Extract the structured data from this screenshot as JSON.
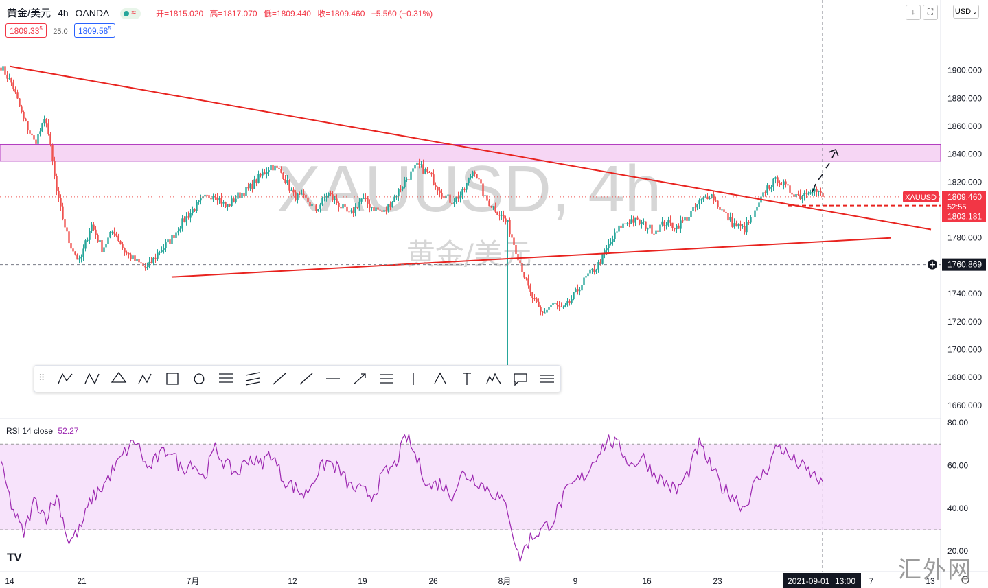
{
  "header": {
    "symbol": "黄金/美元",
    "interval": "4h",
    "broker": "OANDA",
    "open": "开=1815.020",
    "high": "高=1817.070",
    "low": "低=1809.440",
    "close": "收=1809.460",
    "change": "−5.560 (−0.31%)",
    "sell_price": "1809.33",
    "sell_sup": "5",
    "spread": "25.0",
    "buy_price": "1809.58",
    "buy_sup": "5",
    "currency": "USD"
  },
  "watermark": {
    "line1": "XAUUSD, 4h",
    "line2": "黄金/美元"
  },
  "colors": {
    "up": "#26a69a",
    "down": "#ef5350",
    "trend": "#e8231f",
    "zone": "#f3c8f0",
    "rsi": "#9c27b0",
    "rsi_band": "#f5dcfa"
  },
  "toolbar": {
    "tools": [
      "xabcd-pattern-icon",
      "cypher-pattern-icon",
      "head-shoulders-icon",
      "abcd-pattern-icon",
      "rectangle-icon",
      "ellipse-icon",
      "fib-retracement-icon",
      "parallel-channel-icon",
      "trend-line-icon",
      "ray-icon",
      "horizontal-ray-icon",
      "arrow-icon",
      "fib-extension-icon",
      "vertical-line-icon",
      "triangle-icon",
      "text-icon",
      "elliott-wave-icon",
      "callout-icon",
      "regression-trend-icon"
    ]
  },
  "price_labels": {
    "symbol_tag": "XAUUSD",
    "last": "1809.460",
    "countdown": "52:55",
    "dashed_level": "1803.181",
    "crosshair": "1760.869"
  },
  "rsi": {
    "title": "RSI",
    "params": "14 close",
    "value": "52.27"
  },
  "crosshair_time": {
    "date": "2021-09-01",
    "time": "13:00"
  },
  "site_watermark": "汇外网",
  "chart_data": {
    "type": "candlestick",
    "y_ticks": [
      "1900.000",
      "1880.000",
      "1860.000",
      "1840.000",
      "1820.000",
      "1800.000",
      "1780.000",
      "1760.000",
      "1740.000",
      "1720.000",
      "1700.000",
      "1680.000",
      "1660.000"
    ],
    "ylim": [
      1653,
      1921
    ],
    "x_ticks": [
      "14",
      "21",
      "7月",
      "12",
      "19",
      "26",
      "8月",
      "9",
      "16",
      "23",
      "7",
      "13"
    ],
    "key_prices": [
      1903,
      1890,
      1865,
      1848,
      1866,
      1810,
      1778,
      1762,
      1790,
      1772,
      1786,
      1770,
      1763,
      1758,
      1770,
      1778,
      1790,
      1800,
      1808,
      1812,
      1802,
      1810,
      1815,
      1824,
      1832,
      1826,
      1810,
      1808,
      1800,
      1812,
      1804,
      1796,
      1808,
      1802,
      1798,
      1810,
      1822,
      1832,
      1826,
      1814,
      1806,
      1812,
      1830,
      1808,
      1800,
      1790,
      1765,
      1740,
      1725,
      1733,
      1728,
      1740,
      1752,
      1760,
      1775,
      1788,
      1793,
      1790,
      1785,
      1791,
      1788,
      1795,
      1805,
      1812,
      1800,
      1790,
      1786,
      1798,
      1816,
      1822,
      1814,
      1810,
      1816,
      1809.46
    ],
    "supply_zone": [
      1835,
      1847
    ],
    "trend_lines": [
      {
        "from": [
          "2021-06-14",
          1903
        ],
        "to": [
          "2021-09-13",
          1786
        ]
      },
      {
        "from": [
          "2021-06-30",
          1752
        ],
        "to": [
          "2021-09-09",
          1780
        ]
      }
    ],
    "spike_low": 1677,
    "rsi_levels": [
      70,
      30
    ],
    "rsi_ylim": [
      13,
      80
    ],
    "rsi_ticks": [
      "80.00",
      "60.00",
      "40.00",
      "20.00"
    ],
    "rsi_key": [
      60,
      40,
      28,
      44,
      36,
      46,
      24,
      30,
      44,
      50,
      58,
      66,
      72,
      58,
      64,
      68,
      58,
      62,
      54,
      68,
      60,
      56,
      64,
      60,
      66,
      54,
      50,
      46,
      56,
      62,
      58,
      50,
      48,
      46,
      56,
      60,
      74,
      62,
      50,
      52,
      46,
      56,
      54,
      50,
      46,
      40,
      16,
      26,
      30,
      34,
      46,
      52,
      56,
      66,
      72,
      68,
      60,
      64,
      56,
      52,
      48,
      56,
      70,
      60,
      50,
      46,
      40,
      52,
      58,
      70,
      64,
      60,
      56,
      52
    ]
  }
}
